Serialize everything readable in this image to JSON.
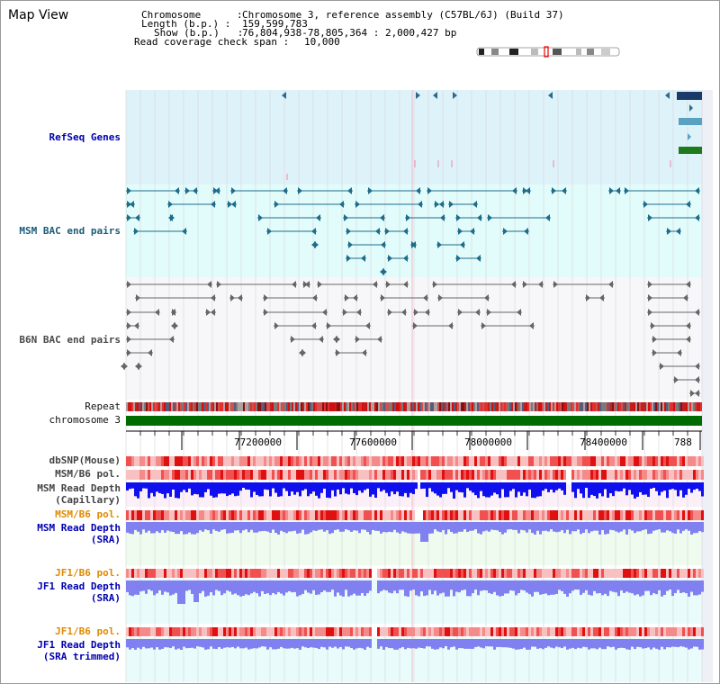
{
  "view_title": "Map View",
  "info": {
    "chromosome_key": "Chromosome      :",
    "chromosome_val": "Chromosome 3, reference assembly (C57BL/6J) (Build 37)",
    "length_key": "Length (b.p.) :",
    "length_val": "159,599,783",
    "show_key": "Show (b.p.)   :",
    "show_val": "76,804,938-78,805,364 : 2,000,427 bp",
    "coverage_key": "Read coverage check span :",
    "coverage_val": "10,000"
  },
  "tracks": {
    "refseq": "RefSeq Genes",
    "msm_bac": "MSM BAC end pairs",
    "b6n_bac": "B6N BAC end pairs",
    "repeat": "Repeat",
    "chromosome": "chromosome 3",
    "dbsnp": "dbSNP(Mouse)",
    "msm_pol1": "MSM/B6 pol.",
    "msm_depth_cap1": "MSM Read Depth",
    "msm_depth_cap2": "(Capillary)",
    "msm_pol2": "MSM/B6 pol.",
    "msm_depth_sra1": "MSM Read Depth",
    "msm_depth_sra2": "(SRA)",
    "jf1_pol1": "JF1/B6 pol.",
    "jf1_depth1": "JF1 Read Depth",
    "jf1_depth2": "(SRA)",
    "jf1_pol2": "JF1/B6 pol.",
    "jf1_trim1": "JF1 Read Depth",
    "jf1_trim2": "(SRA trimmed)"
  },
  "axis_ticks": [
    "77200000",
    "77600000",
    "78000000",
    "78400000",
    "788"
  ],
  "colors": {
    "refseq_bg": "#def2fa",
    "msm_bg": "#e2fbfb",
    "b6n_bg": "#f7f7fa",
    "chromosome_bar": "#006b00",
    "depth_blue": "#1010ee",
    "depth_light": "#8080f0"
  }
}
